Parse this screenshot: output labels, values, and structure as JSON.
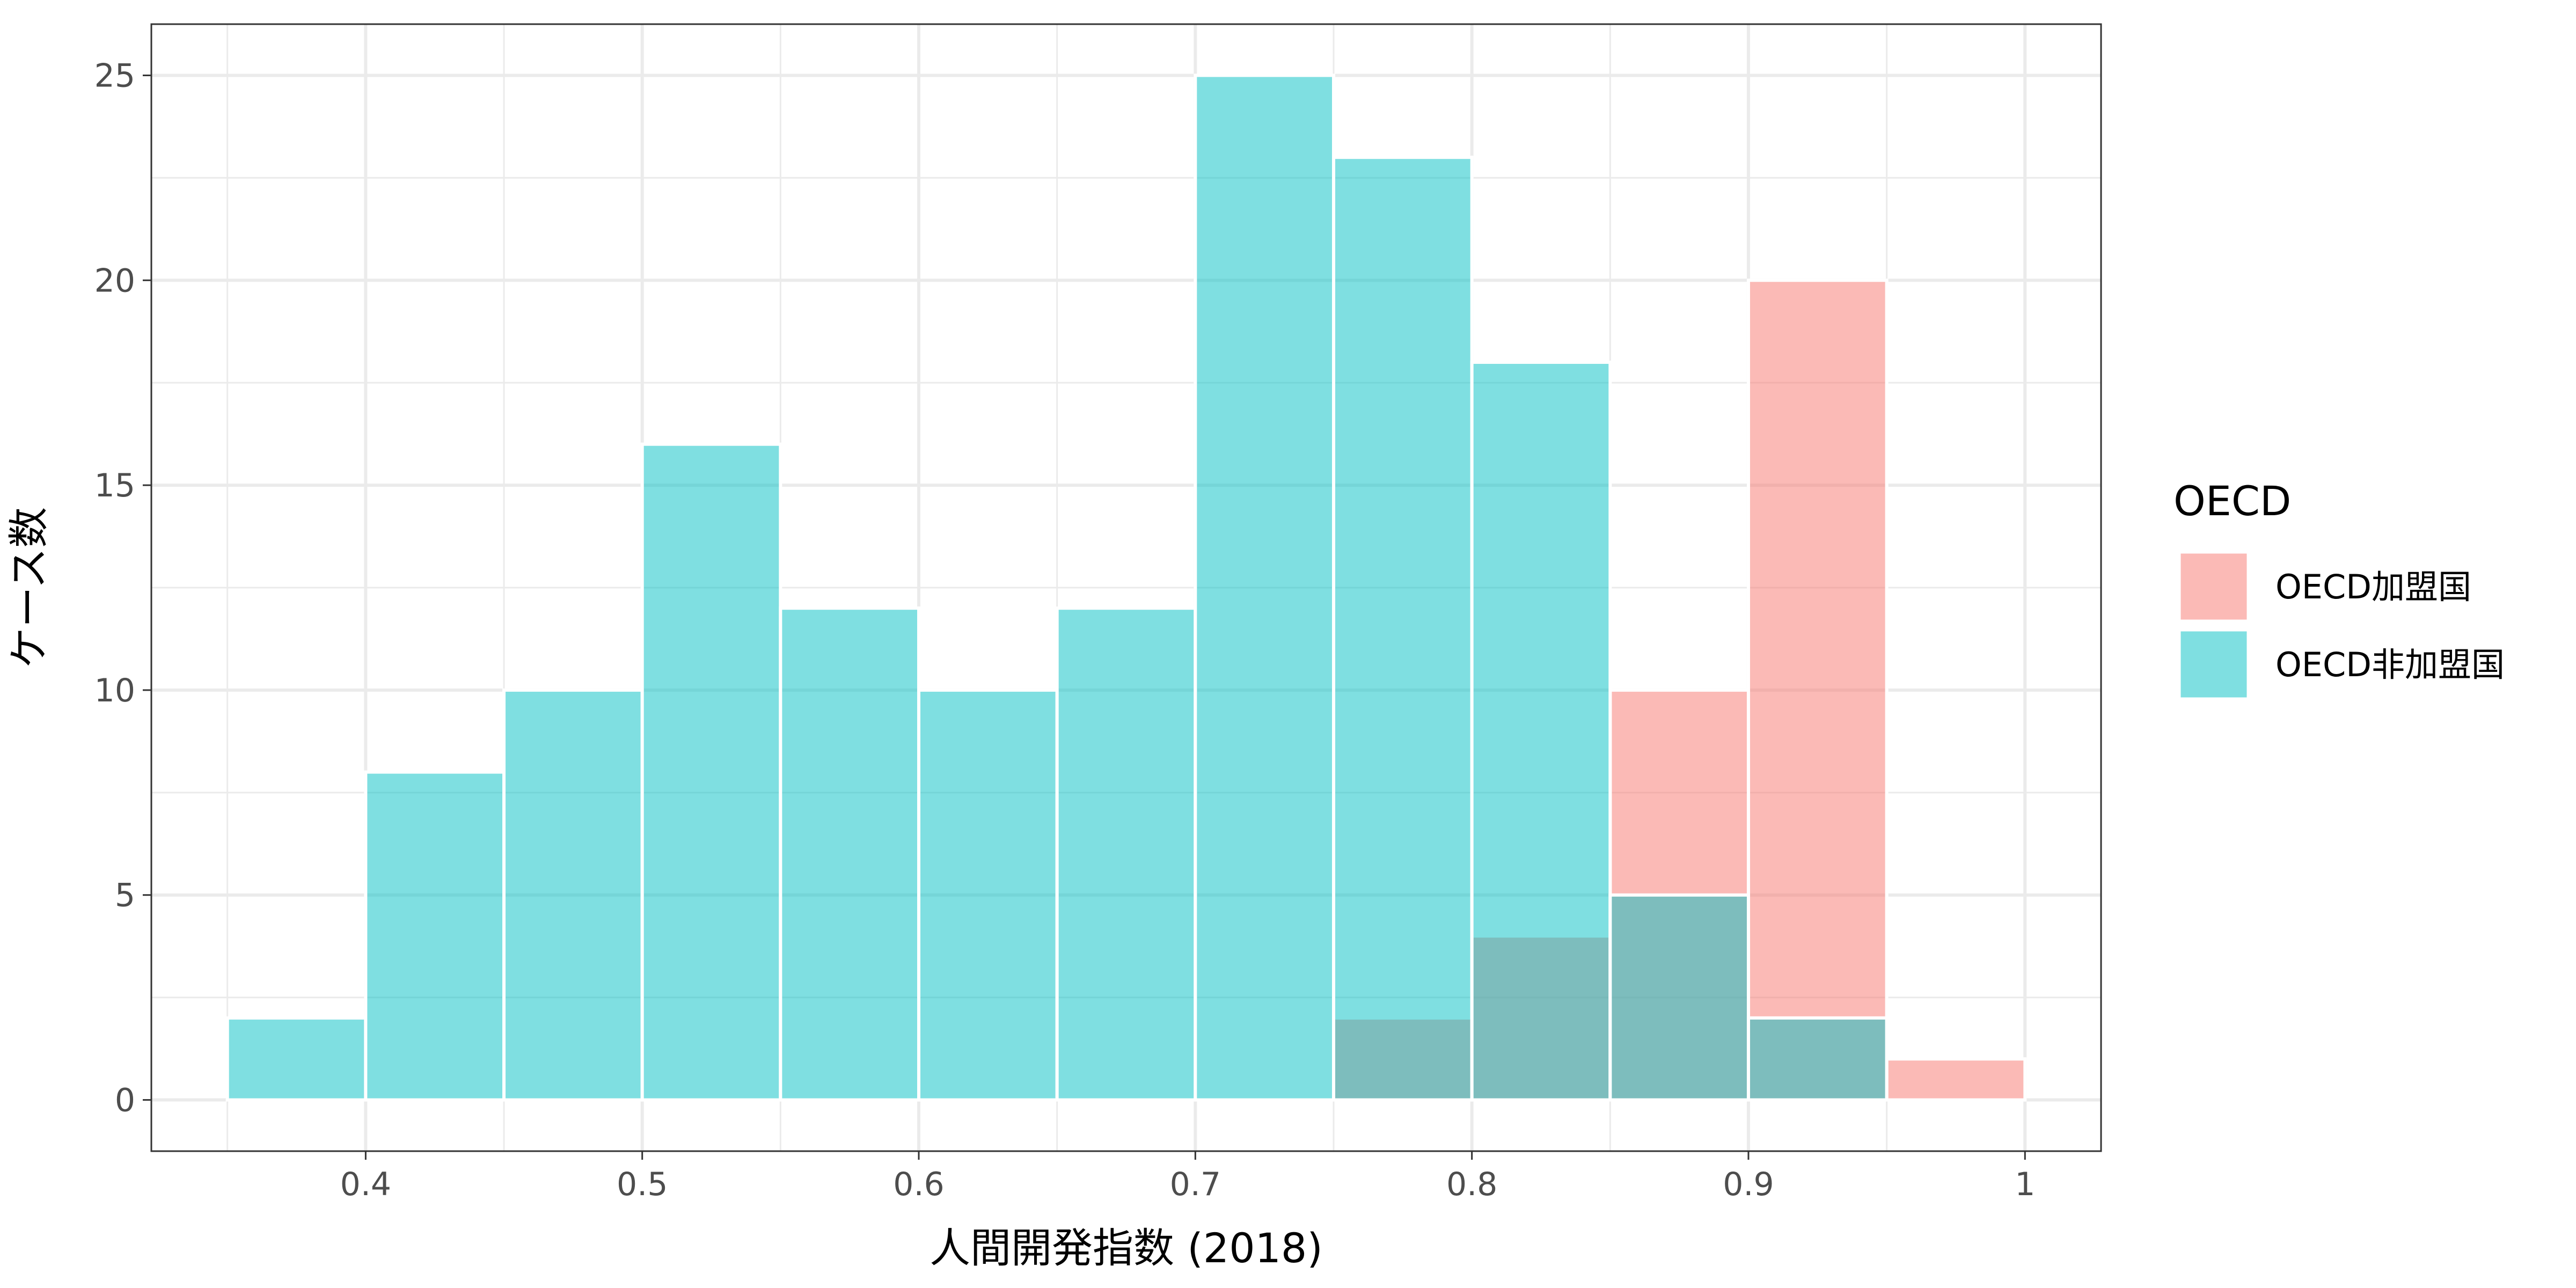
{
  "chart_data": {
    "type": "bar",
    "subtype": "overlapping histogram",
    "xlabel": "人間開発指数 (2018)",
    "ylabel": "ケース数",
    "xlim": [
      0.35,
      1.0
    ],
    "ylim": [
      0,
      25
    ],
    "x_ticks": [
      "0.4",
      "0.5",
      "0.6",
      "0.7",
      "0.8",
      "0.9",
      "1"
    ],
    "y_ticks": [
      "0",
      "5",
      "10",
      "15",
      "20",
      "25"
    ],
    "grid": true,
    "bin_width": 0.05,
    "legend": {
      "title": "OECD",
      "position": "right",
      "entries": [
        "OECD加盟国",
        "OECD非加盟国"
      ]
    },
    "series": [
      {
        "name": "OECD加盟国",
        "color": "#F8766D",
        "bins": [
          {
            "x0": 0.75,
            "x1": 0.8,
            "count": 2
          },
          {
            "x0": 0.8,
            "x1": 0.85,
            "count": 4
          },
          {
            "x0": 0.85,
            "x1": 0.9,
            "count": 10
          },
          {
            "x0": 0.9,
            "x1": 0.95,
            "count": 20
          },
          {
            "x0": 0.95,
            "x1": 1.0,
            "count": 1
          }
        ]
      },
      {
        "name": "OECD非加盟国",
        "color": "#00BFC4",
        "bins": [
          {
            "x0": 0.35,
            "x1": 0.4,
            "count": 2
          },
          {
            "x0": 0.4,
            "x1": 0.45,
            "count": 8
          },
          {
            "x0": 0.45,
            "x1": 0.5,
            "count": 10
          },
          {
            "x0": 0.5,
            "x1": 0.55,
            "count": 16
          },
          {
            "x0": 0.55,
            "x1": 0.6,
            "count": 12
          },
          {
            "x0": 0.6,
            "x1": 0.65,
            "count": 10
          },
          {
            "x0": 0.65,
            "x1": 0.7,
            "count": 12
          },
          {
            "x0": 0.7,
            "x1": 0.75,
            "count": 25
          },
          {
            "x0": 0.75,
            "x1": 0.8,
            "count": 23
          },
          {
            "x0": 0.8,
            "x1": 0.85,
            "count": 18
          },
          {
            "x0": 0.85,
            "x1": 0.9,
            "count": 5
          },
          {
            "x0": 0.9,
            "x1": 0.95,
            "count": 2
          }
        ]
      }
    ]
  }
}
